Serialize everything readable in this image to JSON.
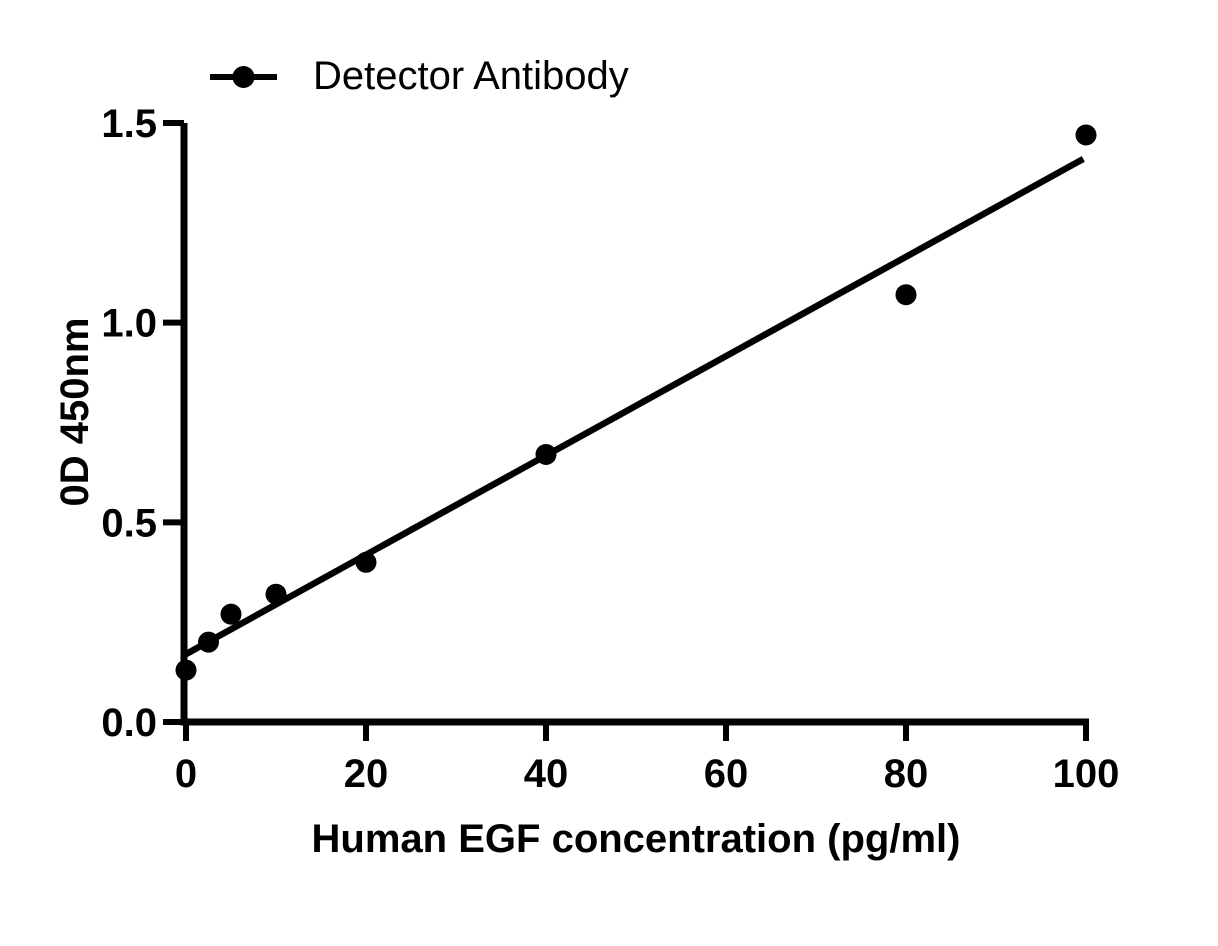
{
  "chart_data": {
    "type": "scatter",
    "title": "",
    "xlabel": "Human EGF concentration (pg/ml)",
    "ylabel": "0D 450nm",
    "xlim": [
      0,
      100
    ],
    "ylim": [
      0,
      1.5
    ],
    "xticks": [
      0,
      20,
      40,
      60,
      80,
      100
    ],
    "yticks": [
      0.0,
      0.5,
      1.0,
      1.5
    ],
    "ytick_labels": [
      "0.0",
      "0.5",
      "1.0",
      "1.5"
    ],
    "grid": false,
    "legend_position": "top-left",
    "series": [
      {
        "name": "Detector Antibody",
        "marker": "filled-circle",
        "points": [
          [
            0,
            0.13
          ],
          [
            2.5,
            0.2
          ],
          [
            5,
            0.27
          ],
          [
            10,
            0.32
          ],
          [
            20,
            0.4
          ],
          [
            40,
            0.67
          ],
          [
            80,
            1.07
          ],
          [
            100,
            1.47
          ]
        ]
      }
    ],
    "trendline": {
      "x1": 0,
      "y1": 0.17,
      "x2": 99.7,
      "y2": 1.41
    },
    "colors": {
      "ink": "#000000",
      "background": "#ffffff"
    }
  }
}
